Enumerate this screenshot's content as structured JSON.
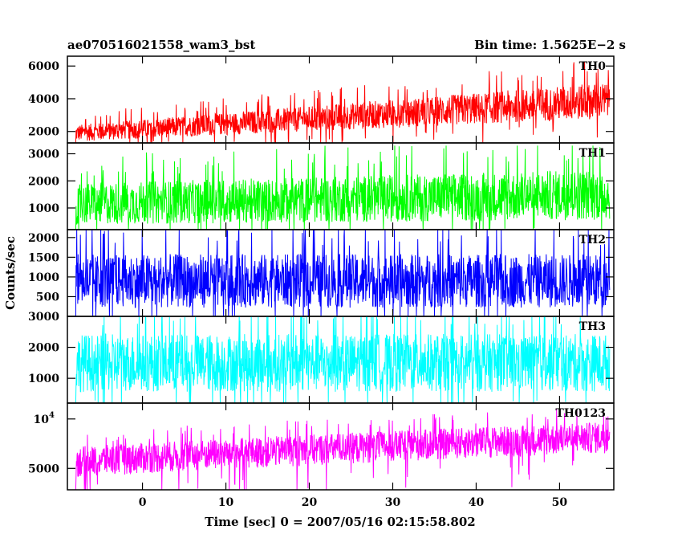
{
  "header": {
    "title": "ae070516021558_wam3_bst",
    "bin_time": "Bin time: 1.5625E−2 s"
  },
  "ylabel": "Counts/sec",
  "xlabel": "Time [sec] 0 = 2007/05/16 02:15:58.802",
  "chart_data": [
    {
      "type": "line",
      "series": [
        {
          "name": "TH0",
          "color": "#ff0000"
        }
      ],
      "xlim": [
        -9,
        56.5
      ],
      "ylim": [
        1300,
        6600
      ],
      "yticks": [
        2000,
        4000,
        6000
      ],
      "ytick_labels": [
        "2000",
        "4000",
        "6000"
      ],
      "signal": {
        "x_start": -8,
        "x_end": 56,
        "mean_start": 1900,
        "mean_end": 3900,
        "spread_start": 600,
        "spread_end": 1300,
        "max_peak": 6500,
        "min_dip": 1300
      }
    },
    {
      "type": "line",
      "series": [
        {
          "name": "TH1",
          "color": "#00ff00"
        }
      ],
      "xlim": [
        -9,
        56.5
      ],
      "ylim": [
        200,
        3400
      ],
      "yticks": [
        1000,
        2000,
        3000
      ],
      "ytick_labels": [
        "1000",
        "2000",
        "3000"
      ],
      "signal": {
        "x_start": -8,
        "x_end": 56,
        "mean_start": 1150,
        "mean_end": 1500,
        "spread_start": 900,
        "spread_end": 1100,
        "max_peak": 3300,
        "min_dip": 200
      }
    },
    {
      "type": "line",
      "series": [
        {
          "name": "TH2",
          "color": "#0000ff"
        }
      ],
      "xlim": [
        -9,
        56.5
      ],
      "ylim": [
        0,
        2200
      ],
      "yticks": [
        500,
        1000,
        1500,
        2000
      ],
      "ytick_labels": [
        "500",
        "1000",
        "1500",
        "2000"
      ],
      "signal": {
        "x_start": -8,
        "x_end": 56,
        "mean_start": 900,
        "mean_end": 900,
        "spread_start": 800,
        "spread_end": 800,
        "max_peak": 2200,
        "min_dip": 0
      }
    },
    {
      "type": "line",
      "series": [
        {
          "name": "TH3",
          "color": "#00ffff"
        }
      ],
      "xlim": [
        -9,
        56.5
      ],
      "ylim": [
        200,
        3000
      ],
      "yticks": [
        1000,
        2000,
        3000
      ],
      "ytick_labels": [
        "1000",
        "2000",
        "3000"
      ],
      "signal": {
        "x_start": -8,
        "x_end": 56,
        "mean_start": 1500,
        "mean_end": 1500,
        "spread_start": 1100,
        "spread_end": 1100,
        "max_peak": 3000,
        "min_dip": 200
      }
    },
    {
      "type": "line",
      "series": [
        {
          "name": "TH0123",
          "color": "#ff00ff"
        }
      ],
      "xlim": [
        -9,
        56.5
      ],
      "ylim": [
        3700,
        12500
      ],
      "yscale": "log",
      "yticks": [
        5000,
        10000
      ],
      "ytick_labels": [
        "5000",
        "10^4"
      ],
      "signal": {
        "x_start": -8,
        "x_end": 56,
        "mean_start": 5600,
        "mean_end": 7900,
        "spread_start": 1400,
        "spread_end": 2000,
        "max_peak": 12500,
        "min_dip": 3700
      }
    }
  ],
  "xticks": [
    0,
    10,
    20,
    30,
    40,
    50
  ],
  "xtick_labels": [
    "0",
    "10",
    "20",
    "30",
    "40",
    "50"
  ]
}
